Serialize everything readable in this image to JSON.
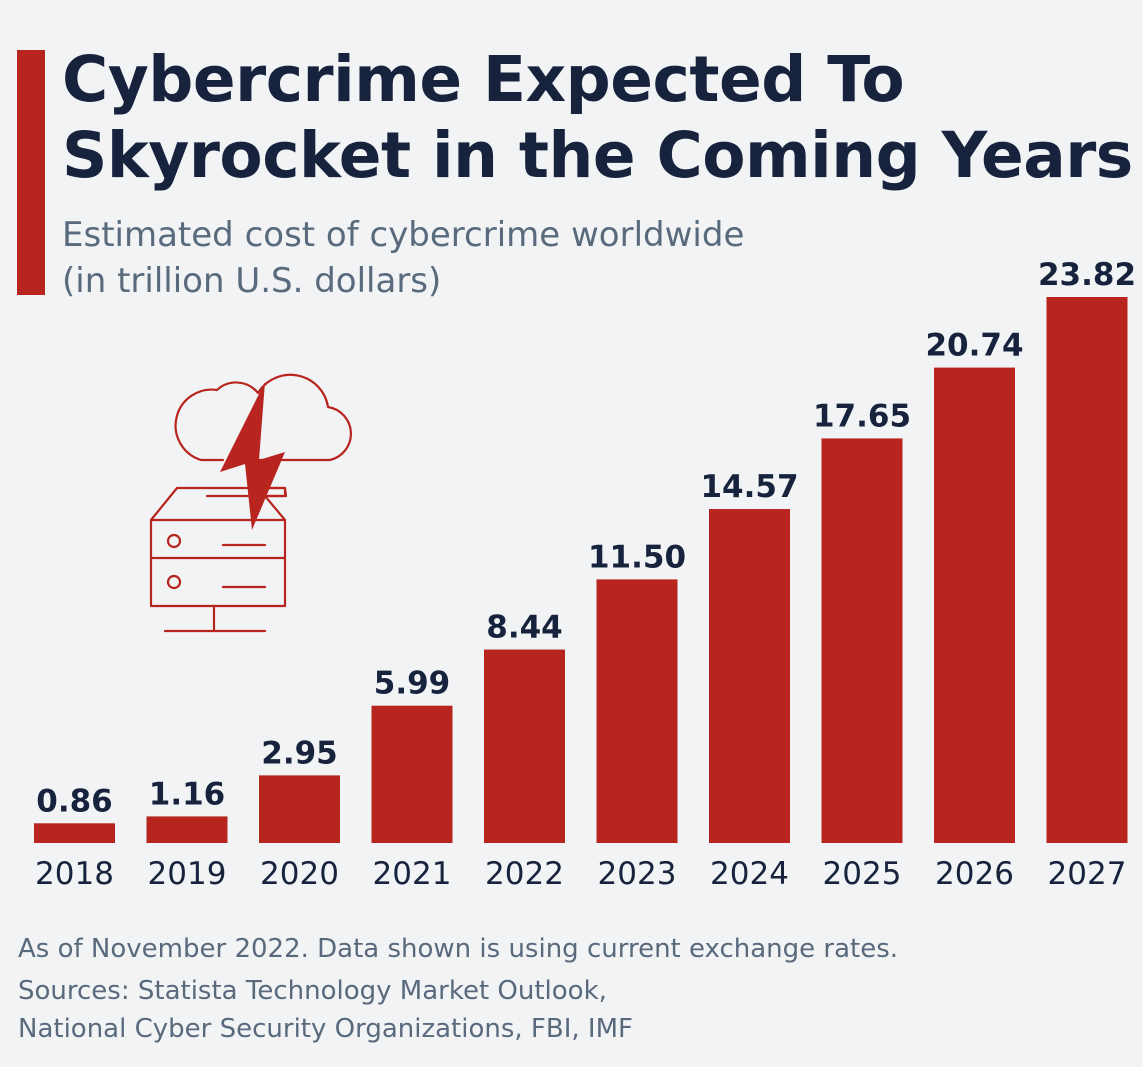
{
  "header": {
    "title_line1": "Cybercrime Expected To",
    "title_line2": "Skyrocket in the Coming Years",
    "subtitle_line1": "Estimated cost of cybercrime worldwide",
    "subtitle_line2": "(in trillion U.S. dollars)"
  },
  "footer": {
    "note": "As of November 2022. Data shown is using current exchange rates.",
    "sources_line1": "Sources: Statista Technology Market Outlook,",
    "sources_line2": "National Cyber Security Organizations, FBI, IMF"
  },
  "icon": {
    "name": "cloud-lightning-server-icon",
    "color": "#b7251e"
  },
  "colors": {
    "bar": "#b7251e",
    "text": "#17233d",
    "muted": "#596a7d",
    "background": "#f2f3f5"
  },
  "chart_data": {
    "type": "bar",
    "title": "Cybercrime Expected To Skyrocket in the Coming Years",
    "subtitle": "Estimated cost of cybercrime worldwide (in trillion U.S. dollars)",
    "xlabel": "",
    "ylabel": "",
    "categories": [
      "2018",
      "2019",
      "2020",
      "2021",
      "2022",
      "2023",
      "2024",
      "2025",
      "2026",
      "2027"
    ],
    "values": [
      0.86,
      1.16,
      2.95,
      5.99,
      8.44,
      11.5,
      14.57,
      17.65,
      20.74,
      23.82
    ],
    "value_labels": [
      "0.86",
      "1.16",
      "2.95",
      "5.99",
      "8.44",
      "11.50",
      "14.57",
      "17.65",
      "20.74",
      "23.82"
    ],
    "ylim": [
      0,
      23.82
    ],
    "grid": false,
    "legend": "none"
  }
}
